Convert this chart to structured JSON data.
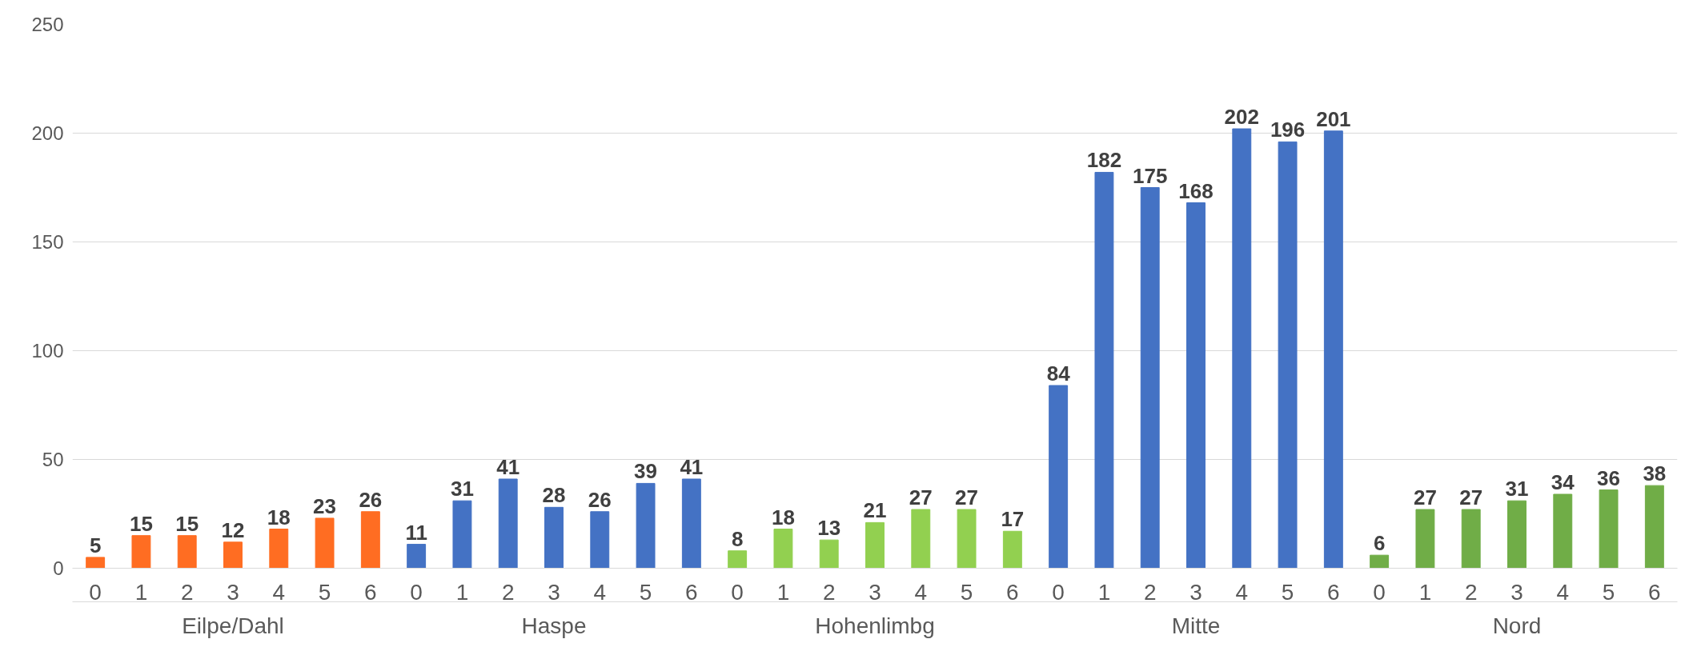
{
  "chart_data": {
    "type": "bar",
    "categories": [
      "0",
      "1",
      "2",
      "3",
      "4",
      "5",
      "6",
      "0",
      "1",
      "2",
      "3",
      "4",
      "5",
      "6",
      "0",
      "1",
      "2",
      "3",
      "4",
      "5",
      "6",
      "0",
      "1",
      "2",
      "3",
      "4",
      "5",
      "6",
      "0",
      "1",
      "2",
      "3",
      "4",
      "5",
      "6"
    ],
    "series": [
      {
        "name": "Eilpe/Dahl",
        "color": "#ff6d22",
        "values": [
          5,
          15,
          15,
          12,
          18,
          23,
          26,
          null,
          null,
          null,
          null,
          null,
          null,
          null,
          null,
          null,
          null,
          null,
          null,
          null,
          null,
          null,
          null,
          null,
          null,
          null,
          null,
          null,
          null,
          null,
          null,
          null,
          null,
          null,
          null
        ]
      },
      {
        "name": "Haspe",
        "color": "#4472c4",
        "values": [
          null,
          null,
          null,
          null,
          null,
          null,
          null,
          11,
          31,
          41,
          28,
          26,
          39,
          41,
          null,
          null,
          null,
          null,
          null,
          null,
          null,
          null,
          null,
          null,
          null,
          null,
          null,
          null,
          null,
          null,
          null,
          null,
          null,
          null,
          null
        ]
      },
      {
        "name": "Hohenlimbg",
        "color": "#92d050",
        "values": [
          null,
          null,
          null,
          null,
          null,
          null,
          null,
          null,
          null,
          null,
          null,
          null,
          null,
          null,
          8,
          18,
          13,
          21,
          27,
          27,
          17,
          null,
          null,
          null,
          null,
          null,
          null,
          null,
          null,
          null,
          null,
          null,
          null,
          null,
          null
        ]
      },
      {
        "name": "Mitte",
        "color": "#4472c4",
        "values": [
          null,
          null,
          null,
          null,
          null,
          null,
          null,
          null,
          null,
          null,
          null,
          null,
          null,
          null,
          null,
          null,
          null,
          null,
          null,
          null,
          null,
          84,
          182,
          175,
          168,
          202,
          196,
          201,
          null,
          null,
          null,
          null,
          null,
          null,
          null
        ]
      },
      {
        "name": "Nord",
        "color": "#70ad47",
        "values": [
          null,
          null,
          null,
          null,
          null,
          null,
          null,
          null,
          null,
          null,
          null,
          null,
          null,
          null,
          null,
          null,
          null,
          null,
          null,
          null,
          null,
          null,
          null,
          null,
          null,
          null,
          null,
          null,
          6,
          27,
          27,
          31,
          34,
          36,
          38
        ]
      }
    ],
    "ylim": [
      0,
      250
    ],
    "yticks": [
      0,
      50,
      100,
      150,
      200,
      250
    ],
    "grid": "y",
    "data_labels": true
  }
}
